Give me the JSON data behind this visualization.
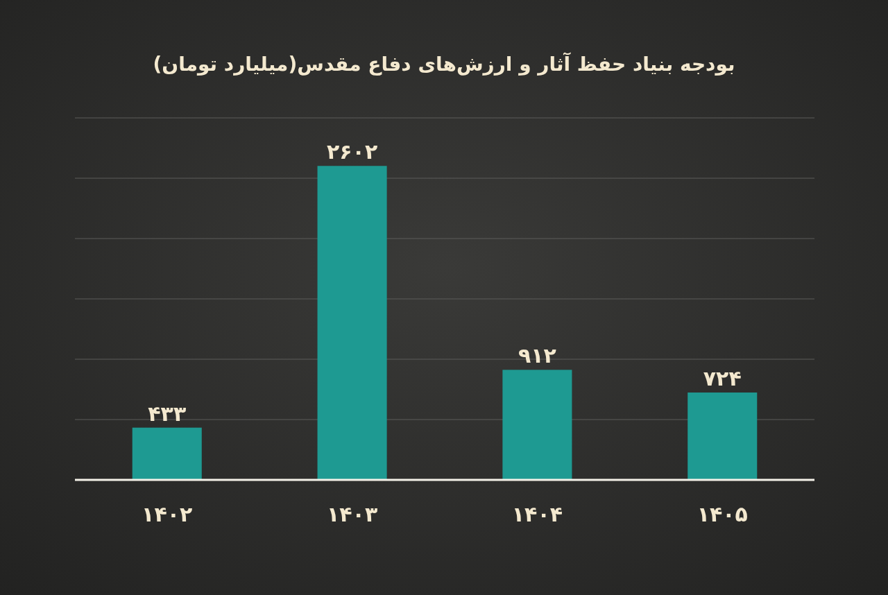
{
  "chart_data": {
    "type": "bar",
    "title": "بودجه بنیاد حفظ آثار و ارزش‌های دفاع مقدس(میلیارد تومان)",
    "categories": [
      "۱۴۰۲",
      "۱۴۰۳",
      "۱۴۰۴",
      "۱۴۰۵"
    ],
    "values": [
      433,
      2602,
      912,
      724
    ],
    "value_labels": [
      "۴۳۳",
      "۲۶۰۲",
      "۹۱۲",
      "۷۲۴"
    ],
    "color": "#1e9a92",
    "ylim": [
      0,
      3000
    ],
    "yticks": [
      {
        "value": 500,
        "label": null
      },
      {
        "value": 1000,
        "label": null
      },
      {
        "value": 1500,
        "label": null
      },
      {
        "value": 2000,
        "label": null
      },
      {
        "value": 2500,
        "label": null
      },
      {
        "value": 3000,
        "label": null
      }
    ],
    "grid": "y",
    "tick_labels": "x"
  }
}
